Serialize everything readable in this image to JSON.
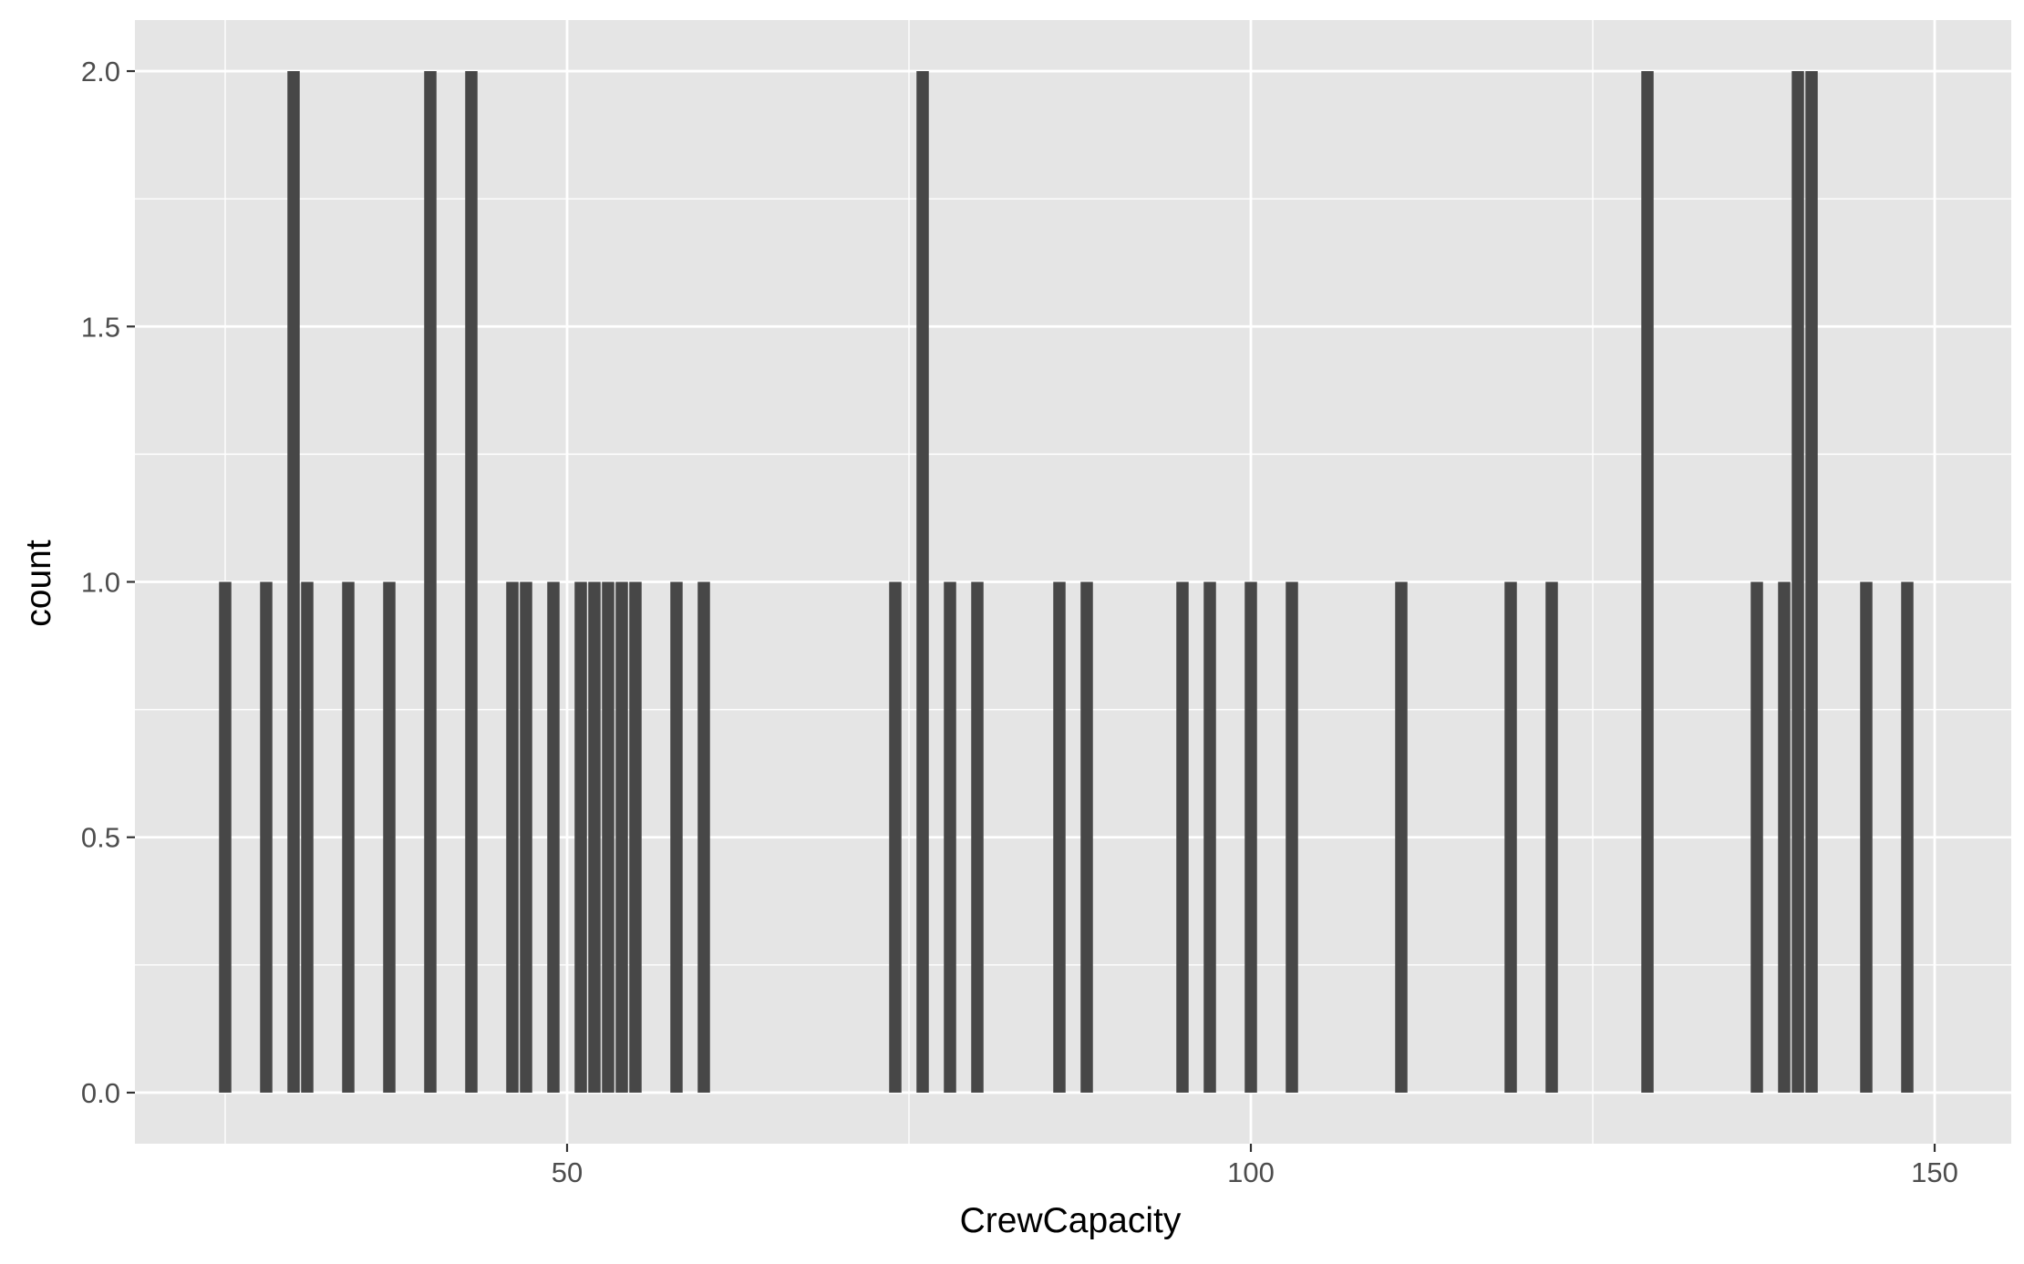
{
  "chart_data": {
    "type": "bar",
    "xlabel": "CrewCapacity",
    "ylabel": "count",
    "xlim": [
      18.4,
      155.6
    ],
    "ylim": [
      -0.1,
      2.1
    ],
    "xticks": [
      50,
      100,
      150
    ],
    "xticks_minor": [
      25,
      75,
      125
    ],
    "yticks": [
      0.0,
      0.5,
      1.0,
      1.5,
      2.0
    ],
    "ytick_labels": [
      "0.0",
      "0.5",
      "1.0",
      "1.5",
      "2.0"
    ],
    "yticks_minor": [
      0.25,
      0.75,
      1.25,
      1.75
    ],
    "bin_width": 0.9,
    "grid": true,
    "x": [
      25,
      28,
      30,
      31,
      34,
      37,
      40,
      43,
      46,
      47,
      49,
      51,
      52,
      53,
      54,
      55,
      58,
      60,
      74,
      76,
      78,
      80,
      86,
      88,
      95,
      97,
      100,
      103,
      111,
      119,
      122,
      129,
      137,
      139,
      140,
      141,
      145,
      148
    ],
    "values": [
      1,
      1,
      2,
      1,
      1,
      1,
      2,
      2,
      1,
      1,
      1,
      1,
      1,
      1,
      1,
      1,
      1,
      1,
      1,
      2,
      1,
      1,
      1,
      1,
      1,
      1,
      1,
      1,
      1,
      1,
      1,
      2,
      1,
      1,
      2,
      2,
      1,
      1
    ]
  },
  "colors": {
    "panel": "#e5e5e5",
    "grid": "#ffffff",
    "bar": "#474747",
    "tick_text": "#4d4d4d",
    "axis_text": "#000000"
  }
}
